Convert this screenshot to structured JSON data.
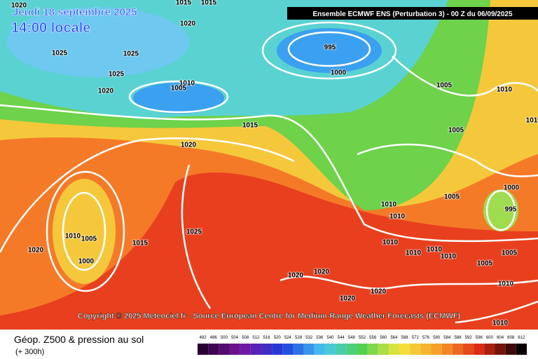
{
  "header": {
    "date": "Jeudi 18 septembre 2025",
    "time": "14:00 locale",
    "banner": "Ensemble ECMWF ENS  (Perturbation 3)  -  00 Z du 06/09/2025"
  },
  "isobar_labels": [
    "1020",
    "1015",
    "1015",
    "1020",
    "1025",
    "1025",
    "995",
    "1000",
    "1025",
    "1020",
    "1010",
    "1005",
    "1005",
    "1010",
    "1015",
    "1020",
    "1005",
    "101",
    "1000",
    "1005",
    "1010",
    "1010",
    "995",
    "1010",
    "1005",
    "1015",
    "1025",
    "1010",
    "1010",
    "1010",
    "1010",
    "1020",
    "1000",
    "1005",
    "1005",
    "1020",
    "1020",
    "1010",
    "1020",
    "1020",
    "1010"
  ],
  "copyright": "Copyright © 2025 Meteociel.fr - Source European Centre for Medium-Range Weather Forecasts (ECMWF)",
  "legend": {
    "title": "Géop. Z500 & pression au sol",
    "lead": "(+ 300h)",
    "scale": [
      492,
      496,
      500,
      504,
      508,
      512,
      516,
      520,
      524,
      528,
      532,
      536,
      540,
      544,
      548,
      552,
      556,
      560,
      564,
      568,
      572,
      576,
      580,
      584,
      588,
      592,
      596,
      600,
      604,
      608,
      612
    ]
  }
}
